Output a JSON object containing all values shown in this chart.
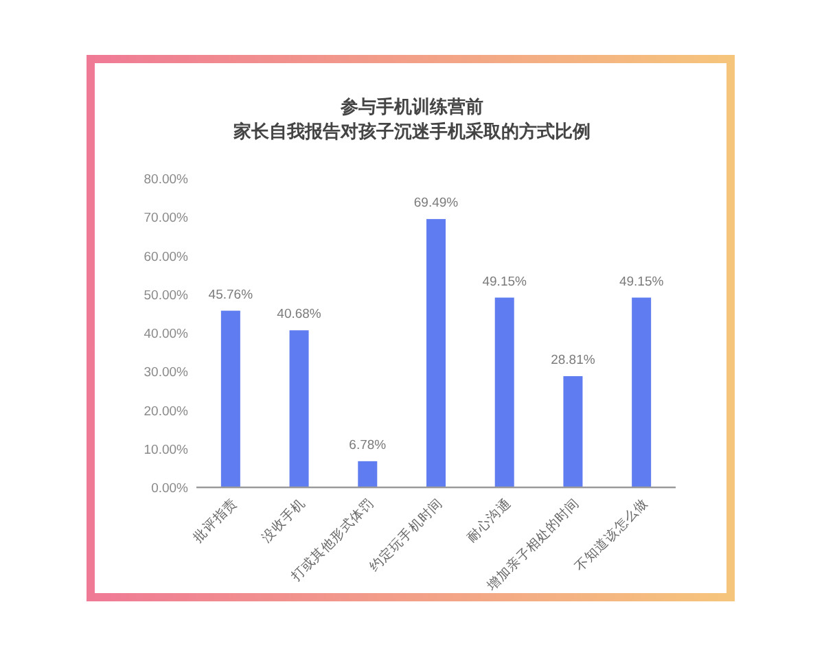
{
  "chart_data": {
    "type": "bar",
    "title": "参与手机训练营前",
    "subtitle": "家长自我报告对孩子沉迷手机采取的方式比例",
    "categories": [
      "批评指责",
      "没收手机",
      "打或其他形式体罚",
      "约定玩手机时间",
      "耐心沟通",
      "增加亲子相处的时间",
      "不知道该怎么做"
    ],
    "values": [
      45.76,
      40.68,
      6.78,
      69.49,
      49.15,
      28.81,
      49.15
    ],
    "value_labels": [
      "45.76%",
      "40.68%",
      "6.78%",
      "69.49%",
      "49.15%",
      "28.81%",
      "49.15%"
    ],
    "color": "#5f7cf0",
    "ylim": [
      0,
      80
    ],
    "yticks": [
      {
        "value": 0,
        "label": "0.00%"
      },
      {
        "value": 10,
        "label": "10.00%"
      },
      {
        "value": 20,
        "label": "20.00%"
      },
      {
        "value": 30,
        "label": "30.00%"
      },
      {
        "value": 40,
        "label": "40.00%"
      },
      {
        "value": 50,
        "label": "50.00%"
      },
      {
        "value": 60,
        "label": "60.00%"
      },
      {
        "value": 70,
        "label": "70.00%"
      },
      {
        "value": 80,
        "label": "80.00%"
      }
    ]
  }
}
